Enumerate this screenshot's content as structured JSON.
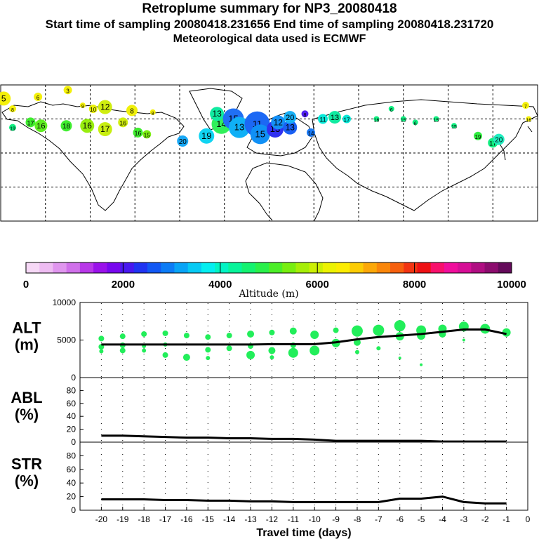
{
  "header": {
    "title": "Retroplume summary for NP3_20080418",
    "sampling": "Start time of sampling 20080418.231656      End time of sampling 20080418.231720",
    "met": "Meteorological data used is ECMWF"
  },
  "colorbar": {
    "colors": [
      "#f6d8f6",
      "#eebcf2",
      "#e096ee",
      "#d070ea",
      "#b838e8",
      "#9a12ea",
      "#7808ee",
      "#4818f0",
      "#2034f2",
      "#1258f4",
      "#0c7cf6",
      "#08a4f6",
      "#06caf4",
      "#04eef0",
      "#02f4c4",
      "#08f49a",
      "#14f270",
      "#2af04a",
      "#4cee28",
      "#78ee10",
      "#a6ee08",
      "#ccf004",
      "#ecf202",
      "#fcec02",
      "#fccc04",
      "#fca808",
      "#fa860a",
      "#f6600e",
      "#f23412",
      "#ee1014",
      "#f8106c",
      "#f00e9c",
      "#d60e96",
      "#b00e82",
      "#8c0c6e",
      "#640a5a"
    ],
    "ticks": [
      "0",
      "2000",
      "4000",
      "6000",
      "8000",
      "10000"
    ],
    "label": "Altitude  (m)"
  },
  "map": {
    "plumes": [
      {
        "lon": -178,
        "lat": 72,
        "r": 10,
        "c": "#f4f00a",
        "l": "5"
      },
      {
        "lon": -172,
        "lat": 66,
        "r": 5,
        "c": "#f4f00a",
        "l": "8"
      },
      {
        "lon": -155,
        "lat": 73,
        "r": 6,
        "c": "#f4f00a",
        "l": "6"
      },
      {
        "lon": -135,
        "lat": 77,
        "r": 6,
        "c": "#f4f00a",
        "l": "3"
      },
      {
        "lon": -125,
        "lat": 68,
        "r": 4,
        "c": "#f4f00a",
        "l": "9"
      },
      {
        "lon": -118,
        "lat": 66,
        "r": 6,
        "c": "#e8f00a",
        "l": "10"
      },
      {
        "lon": -110,
        "lat": 67,
        "r": 10,
        "c": "#d0ee10",
        "l": "12"
      },
      {
        "lon": -92,
        "lat": 65,
        "r": 8,
        "c": "#f0f00a",
        "l": "8"
      },
      {
        "lon": -78,
        "lat": 64,
        "r": 4,
        "c": "#f4f00a",
        "l": "8"
      },
      {
        "lon": -172,
        "lat": 55,
        "r": 5,
        "c": "#10ee80",
        "l": "19"
      },
      {
        "lon": -160,
        "lat": 58,
        "r": 7,
        "c": "#40ee30",
        "l": "17"
      },
      {
        "lon": -153,
        "lat": 56,
        "r": 9,
        "c": "#60ee22",
        "l": "16"
      },
      {
        "lon": -136,
        "lat": 56,
        "r": 8,
        "c": "#40ee30",
        "l": "18"
      },
      {
        "lon": -122,
        "lat": 56,
        "r": 10,
        "c": "#98ee0e",
        "l": "16"
      },
      {
        "lon": -110,
        "lat": 54,
        "r": 10,
        "c": "#c8ee10",
        "l": "17"
      },
      {
        "lon": -98,
        "lat": 58,
        "r": 7,
        "c": "#d0ee10",
        "l": "16"
      },
      {
        "lon": -88,
        "lat": 52,
        "r": 7,
        "c": "#40ee30",
        "l": "16"
      },
      {
        "lon": -82,
        "lat": 51,
        "r": 6,
        "c": "#7cee10",
        "l": "15"
      },
      {
        "lon": -58,
        "lat": 47,
        "r": 8,
        "c": "#18a8f6",
        "l": "20"
      },
      {
        "lon": -42,
        "lat": 50,
        "r": 11,
        "c": "#10d4f2",
        "l": "19"
      },
      {
        "lon": -32,
        "lat": 57,
        "r": 14,
        "c": "#30f05a",
        "l": "14"
      },
      {
        "lon": -35,
        "lat": 63,
        "r": 10,
        "c": "#10eaa0",
        "l": "13"
      },
      {
        "lon": -24,
        "lat": 60,
        "r": 15,
        "c": "#2070f4",
        "l": "15"
      },
      {
        "lon": -20,
        "lat": 55,
        "r": 15,
        "c": "#10b0f6",
        "l": "13"
      },
      {
        "lon": -8,
        "lat": 57,
        "r": 18,
        "c": "#1c68f4",
        "l": "11"
      },
      {
        "lon": -6,
        "lat": 51,
        "r": 14,
        "c": "#1090f6",
        "l": "15"
      },
      {
        "lon": 4,
        "lat": 54,
        "r": 12,
        "c": "#3030f0",
        "l": "13"
      },
      {
        "lon": 6,
        "lat": 58,
        "r": 10,
        "c": "#1490f6",
        "l": "12"
      },
      {
        "lon": 14,
        "lat": 55,
        "r": 10,
        "c": "#1a60f4",
        "l": "13"
      },
      {
        "lon": 14,
        "lat": 61,
        "r": 9,
        "c": "#18b0f6",
        "l": "20"
      },
      {
        "lon": 24,
        "lat": 63,
        "r": 5,
        "c": "#5020f0",
        "l": "8"
      },
      {
        "lon": 28,
        "lat": 52,
        "r": 6,
        "c": "#1878f4",
        "l": "14"
      },
      {
        "lon": 36,
        "lat": 60,
        "r": 7,
        "c": "#08e8d8",
        "l": "11"
      },
      {
        "lon": 44,
        "lat": 61,
        "r": 9,
        "c": "#10eaa0",
        "l": "13"
      },
      {
        "lon": 52,
        "lat": 60,
        "r": 6,
        "c": "#08e8d8",
        "l": "17"
      },
      {
        "lon": 72,
        "lat": 60,
        "r": 4,
        "c": "#10ee80",
        "l": "16"
      },
      {
        "lon": 82,
        "lat": 66,
        "r": 4,
        "c": "#10ee80",
        "l": "6"
      },
      {
        "lon": 90,
        "lat": 60,
        "r": 4,
        "c": "#10ee80",
        "l": "15"
      },
      {
        "lon": 98,
        "lat": 58,
        "r": 4,
        "c": "#10ee80",
        "l": "6"
      },
      {
        "lon": 112,
        "lat": 60,
        "r": 4,
        "c": "#10ee80",
        "l": "15"
      },
      {
        "lon": 124,
        "lat": 56,
        "r": 4,
        "c": "#10ee80",
        "l": "15"
      },
      {
        "lon": 140,
        "lat": 50,
        "r": 6,
        "c": "#30ee40",
        "l": "19"
      },
      {
        "lon": 150,
        "lat": 46,
        "r": 7,
        "c": "#10ee80",
        "l": "17"
      },
      {
        "lon": 154,
        "lat": 48,
        "r": 8,
        "c": "#20eec0",
        "l": "20"
      },
      {
        "lon": 172,
        "lat": 68,
        "r": 5,
        "c": "#f4f00a",
        "l": "7"
      },
      {
        "lon": 174,
        "lat": 60,
        "r": 4,
        "c": "#f4f00a",
        "l": "16"
      }
    ]
  },
  "chart_data": [
    {
      "type": "scatter",
      "id": "ALT",
      "label": "ALT\n(m)",
      "ylim": [
        0,
        10000
      ],
      "yticks": [
        "0",
        "5000",
        "10000"
      ],
      "x": [
        -20,
        -19,
        -18,
        -17,
        -16,
        -15,
        -14,
        -13,
        -12,
        -11,
        -10,
        -9,
        -8,
        -7,
        -6,
        -5,
        -4,
        -3,
        -2,
        -1
      ],
      "line": [
        4400,
        4400,
        4400,
        4400,
        4400,
        4400,
        4400,
        4400,
        4450,
        4450,
        4450,
        4700,
        5100,
        5400,
        5600,
        5800,
        6100,
        6400,
        6400,
        5800
      ],
      "points": [
        {
          "x": -20,
          "y": 5200,
          "r": 4
        },
        {
          "x": -20,
          "y": 4100,
          "r": 4
        },
        {
          "x": -20,
          "y": 3500,
          "r": 3
        },
        {
          "x": -19,
          "y": 5500,
          "r": 4
        },
        {
          "x": -19,
          "y": 4300,
          "r": 4
        },
        {
          "x": -19,
          "y": 3600,
          "r": 4
        },
        {
          "x": -18,
          "y": 5800,
          "r": 4
        },
        {
          "x": -18,
          "y": 4200,
          "r": 3
        },
        {
          "x": -18,
          "y": 3600,
          "r": 3
        },
        {
          "x": -17,
          "y": 5900,
          "r": 4
        },
        {
          "x": -17,
          "y": 3000,
          "r": 4
        },
        {
          "x": -17,
          "y": 4400,
          "r": 3
        },
        {
          "x": -16,
          "y": 5600,
          "r": 4
        },
        {
          "x": -16,
          "y": 2700,
          "r": 5
        },
        {
          "x": -15,
          "y": 5400,
          "r": 4
        },
        {
          "x": -15,
          "y": 3700,
          "r": 4
        },
        {
          "x": -15,
          "y": 2600,
          "r": 3
        },
        {
          "x": -14,
          "y": 5600,
          "r": 4
        },
        {
          "x": -14,
          "y": 3900,
          "r": 4
        },
        {
          "x": -13,
          "y": 5800,
          "r": 5
        },
        {
          "x": -13,
          "y": 3000,
          "r": 6
        },
        {
          "x": -13,
          "y": 4200,
          "r": 4
        },
        {
          "x": -12,
          "y": 6000,
          "r": 4
        },
        {
          "x": -12,
          "y": 3600,
          "r": 5
        },
        {
          "x": -12,
          "y": 2700,
          "r": 3
        },
        {
          "x": -11,
          "y": 6200,
          "r": 5
        },
        {
          "x": -11,
          "y": 3300,
          "r": 7
        },
        {
          "x": -11,
          "y": 4300,
          "r": 4
        },
        {
          "x": -10,
          "y": 5700,
          "r": 6
        },
        {
          "x": -10,
          "y": 3600,
          "r": 7
        },
        {
          "x": -9,
          "y": 6300,
          "r": 4
        },
        {
          "x": -9,
          "y": 4600,
          "r": 6
        },
        {
          "x": -8,
          "y": 6200,
          "r": 8
        },
        {
          "x": -8,
          "y": 4700,
          "r": 5
        },
        {
          "x": -8,
          "y": 3400,
          "r": 3
        },
        {
          "x": -7,
          "y": 6300,
          "r": 8
        },
        {
          "x": -7,
          "y": 3900,
          "r": 3
        },
        {
          "x": -6,
          "y": 6900,
          "r": 8
        },
        {
          "x": -6,
          "y": 5500,
          "r": 6
        },
        {
          "x": -6,
          "y": 2600,
          "r": 2
        },
        {
          "x": -5,
          "y": 6300,
          "r": 7
        },
        {
          "x": -5,
          "y": 5600,
          "r": 6
        },
        {
          "x": -5,
          "y": 1700,
          "r": 2
        },
        {
          "x": -4,
          "y": 6500,
          "r": 6
        },
        {
          "x": -4,
          "y": 5800,
          "r": 5
        },
        {
          "x": -3,
          "y": 6800,
          "r": 7
        },
        {
          "x": -3,
          "y": 5000,
          "r": 2
        },
        {
          "x": -2,
          "y": 6500,
          "r": 7
        },
        {
          "x": -1,
          "y": 6000,
          "r": 6
        }
      ]
    },
    {
      "type": "line",
      "id": "ABL",
      "label": "ABL\n(%)",
      "ylim": [
        0,
        100
      ],
      "yticks": [
        "0",
        "20",
        "40",
        "60",
        "80"
      ],
      "x": [
        -20,
        -19,
        -18,
        -17,
        -16,
        -15,
        -14,
        -13,
        -12,
        -11,
        -10,
        -9,
        -8,
        -7,
        -6,
        -5,
        -4,
        -3,
        -2,
        -1
      ],
      "values": [
        10,
        10,
        9,
        8,
        7,
        7,
        6,
        6,
        5,
        5,
        4,
        2,
        2,
        2,
        2,
        2,
        1,
        1,
        1,
        1
      ]
    },
    {
      "type": "line",
      "id": "STR",
      "label": "STR\n(%)",
      "ylim": [
        0,
        100
      ],
      "yticks": [
        "0",
        "20",
        "40",
        "60",
        "80"
      ],
      "x": [
        -20,
        -19,
        -18,
        -17,
        -16,
        -15,
        -14,
        -13,
        -12,
        -11,
        -10,
        -9,
        -8,
        -7,
        -6,
        -5,
        -4,
        -3,
        -2,
        -1
      ],
      "values": [
        16,
        16,
        16,
        15,
        15,
        14,
        14,
        13,
        13,
        12,
        12,
        12,
        12,
        12,
        17,
        17,
        20,
        12,
        10,
        10
      ],
      "xticks": [
        "-20",
        "-19",
        "-18",
        "-17",
        "-16",
        "-15",
        "-14",
        "-13",
        "-12",
        "-11",
        "-10",
        "-9",
        "-8",
        "-7",
        "-6",
        "-5",
        "-4",
        "-3",
        "-2",
        "-1",
        "0"
      ],
      "xlabel": "Travel time (days)"
    }
  ]
}
